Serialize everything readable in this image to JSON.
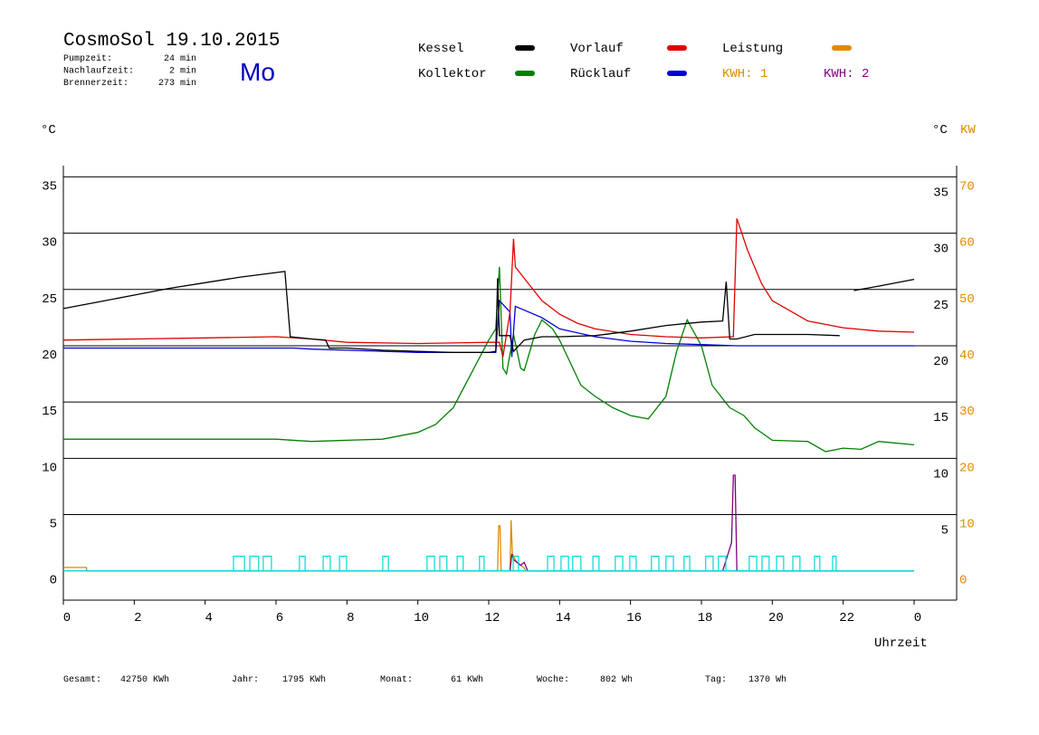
{
  "chart_data": {
    "type": "line",
    "title": "CosmoSol 19.10.2015",
    "weekday": "Mo",
    "info": [
      {
        "label": "Pumpzeit:",
        "value": "24 min"
      },
      {
        "label": "Nachlaufzeit:",
        "value": "2 min"
      },
      {
        "label": "Brennerzeit:",
        "value": "273 min"
      }
    ],
    "y_label": "°C",
    "y_label_right": "°C",
    "y2_label": "KW",
    "x_label": "Uhrzeit",
    "xlim": [
      0,
      25.2
    ],
    "xticks": [
      0,
      2,
      4,
      6,
      8,
      10,
      12,
      14,
      16,
      18,
      20,
      22,
      {
        "value": 24,
        "label": "0"
      }
    ],
    "ylim": [
      -2.6,
      36
    ],
    "yticks": [
      0,
      5,
      10,
      15,
      20,
      25,
      30,
      35
    ],
    "yticks_right": [
      5,
      10,
      15,
      20,
      25,
      30,
      35
    ],
    "y2lim": [
      -5.2,
      72
    ],
    "y2ticks": [
      0,
      10,
      20,
      30,
      40,
      50,
      60,
      70
    ],
    "y2_color": "#e08a00",
    "grid": true,
    "series": [
      {
        "name": "Kollektor",
        "color": "#008000",
        "x": [
          0,
          2,
          4,
          6,
          7,
          8,
          9,
          10,
          10.5,
          11,
          11.5,
          12,
          12.2,
          12.3,
          12.4,
          12.5,
          12.7,
          12.9,
          13,
          13.3,
          13.5,
          13.8,
          14,
          14.3,
          14.6,
          15,
          15.5,
          16,
          16.5,
          17,
          17.3,
          17.6,
          18,
          18.3,
          18.8,
          19.2,
          19.5,
          20,
          21,
          21.5,
          22,
          22.5,
          23,
          24
        ],
        "values": [
          11.7,
          11.7,
          11.7,
          11.7,
          11.5,
          11.6,
          11.7,
          12.3,
          13,
          14.5,
          17.5,
          20.5,
          21.5,
          27,
          18,
          17.5,
          21,
          18,
          17.8,
          21,
          22.3,
          21.5,
          20.5,
          18.5,
          16.5,
          15.5,
          14.5,
          13.8,
          13.5,
          15.5,
          19.5,
          22.3,
          20,
          16.5,
          14.5,
          13.8,
          12.7,
          11.6,
          11.5,
          10.6,
          10.9,
          10.8,
          11.5,
          11.2
        ]
      },
      {
        "name": "Rücklauf",
        "color": "#0000e0",
        "x": [
          0,
          5,
          6.5,
          7,
          8,
          10,
          12.2,
          12.3,
          12.6,
          12.65,
          12.75,
          13.5,
          14,
          15,
          16,
          17,
          18,
          19,
          20,
          22,
          24
        ],
        "values": [
          19.8,
          19.8,
          19.8,
          19.7,
          19.6,
          19.4,
          19.4,
          24,
          23,
          19,
          23.5,
          22.5,
          21.5,
          20.8,
          20.4,
          20.2,
          20.1,
          20,
          20,
          20,
          20
        ]
      },
      {
        "name": "Vorlauf",
        "color": "#e00000",
        "x": [
          0,
          2,
          4,
          6,
          7,
          8,
          10,
          12,
          12.3,
          12.4,
          12.6,
          12.7,
          12.75,
          13,
          13.5,
          14,
          14.5,
          15,
          16,
          17,
          18,
          18.9,
          19,
          19.3,
          19.7,
          20,
          21,
          22,
          23,
          24
        ],
        "values": [
          20.5,
          20.6,
          20.7,
          20.8,
          20.6,
          20.3,
          20.2,
          20.3,
          20.3,
          19,
          23,
          29.5,
          27,
          26,
          24,
          22.8,
          22,
          21.5,
          21,
          20.8,
          20.7,
          20.8,
          31.3,
          28.5,
          25.5,
          24,
          22.2,
          21.6,
          21.3,
          21.2
        ]
      },
      {
        "name": "Kessel",
        "color": "#000000",
        "x": [
          0,
          1,
          2,
          3,
          4,
          5,
          6,
          6.25,
          6.4,
          7,
          7.4,
          7.5,
          8,
          9,
          10,
          11,
          12,
          12.2,
          12.25,
          12.3,
          12.4,
          12.6,
          12.7,
          13,
          13.5,
          14,
          15,
          16,
          17,
          18,
          18.6,
          18.7,
          18.8,
          19,
          19.5,
          20,
          21,
          21.9,
          22.1,
          22.3,
          23,
          24
        ],
        "values": [
          23.3,
          23.9,
          24.5,
          25.1,
          25.6,
          26.1,
          26.5,
          26.6,
          20.8,
          20.6,
          20.5,
          19.8,
          19.8,
          19.6,
          19.5,
          19.4,
          19.4,
          19.5,
          26,
          20.9,
          20.9,
          20.9,
          19.5,
          20.5,
          20.8,
          20.8,
          20.9,
          21.3,
          21.8,
          22.1,
          22.2,
          25.7,
          20.6,
          20.6,
          21,
          21,
          21,
          20.9,
          null,
          24.9,
          25.3,
          25.9
        ]
      },
      {
        "name": "Leistung",
        "color": "#e08a00",
        "axis": "y2",
        "x": [
          0,
          0.65,
          0.66,
          12.25,
          12.28,
          12.32,
          12.35,
          12.6,
          12.63,
          12.67,
          12.75,
          12.8,
          12.9,
          13,
          13.05,
          24
        ],
        "values": [
          0.6,
          0.6,
          0,
          0,
          8,
          8,
          0,
          0,
          9,
          3,
          2,
          1.5,
          1,
          0.5,
          0,
          0
        ]
      },
      {
        "color": "#800080",
        "axis": "y2",
        "x": [
          12.6,
          12.65,
          12.7,
          12.8,
          12.9,
          13,
          13.1,
          18.6,
          18.85,
          18.9,
          18.95,
          19,
          24
        ],
        "values": [
          0,
          3,
          2,
          1.5,
          1,
          1.5,
          0,
          0,
          5,
          17,
          17,
          0,
          0
        ]
      },
      {
        "color": "#00d8d8",
        "x": [
          0,
          24
        ],
        "values": [
          0,
          0
        ]
      }
    ],
    "pump_pulses": {
      "color": "#00d8d8",
      "height": 1.3,
      "intervals": [
        [
          4.8,
          5.11
        ],
        [
          5.26,
          5.51
        ],
        [
          5.64,
          5.87
        ],
        [
          6.66,
          6.82
        ],
        [
          7.33,
          7.53
        ],
        [
          7.79,
          7.99
        ],
        [
          9.01,
          9.17
        ],
        [
          10.26,
          10.47
        ],
        [
          10.62,
          10.82
        ],
        [
          11.11,
          11.28
        ],
        [
          11.74,
          11.87
        ],
        [
          12.69,
          12.84
        ],
        [
          13.66,
          13.84
        ],
        [
          14.04,
          14.25
        ],
        [
          14.37,
          14.6
        ],
        [
          14.94,
          15.11
        ],
        [
          15.57,
          15.78
        ],
        [
          15.98,
          16.16
        ],
        [
          16.59,
          16.8
        ],
        [
          17.0,
          17.21
        ],
        [
          17.51,
          17.67
        ],
        [
          18.12,
          18.33
        ],
        [
          18.48,
          18.69
        ],
        [
          19.35,
          19.56
        ],
        [
          19.71,
          19.91
        ],
        [
          20.12,
          20.32
        ],
        [
          20.58,
          20.78
        ],
        [
          21.19,
          21.34
        ],
        [
          21.7,
          21.8
        ]
      ]
    },
    "legend": [
      {
        "series": 3,
        "label": "Kessel"
      },
      {
        "series": 2,
        "label": "Vorlauf"
      },
      {
        "series": 4,
        "label": "Leistung"
      },
      {
        "series": 0,
        "label": "Kollektor"
      },
      {
        "series": 1,
        "label": "Rücklauf"
      }
    ],
    "legend_texts": [
      {
        "text": "KWH: 1",
        "color": "#e08a00"
      },
      {
        "text": "KWH: 2",
        "color": "#800080"
      }
    ],
    "footer": [
      {
        "label": "Gesamt:",
        "value": "42750 KWh"
      },
      {
        "label": "Jahr:",
        "value": "1795 KWh"
      },
      {
        "label": "Monat:",
        "value": "61 KWh"
      },
      {
        "label": "Woche:",
        "value": "802 Wh"
      },
      {
        "label": "Tag:",
        "value": "1370 Wh"
      }
    ]
  }
}
